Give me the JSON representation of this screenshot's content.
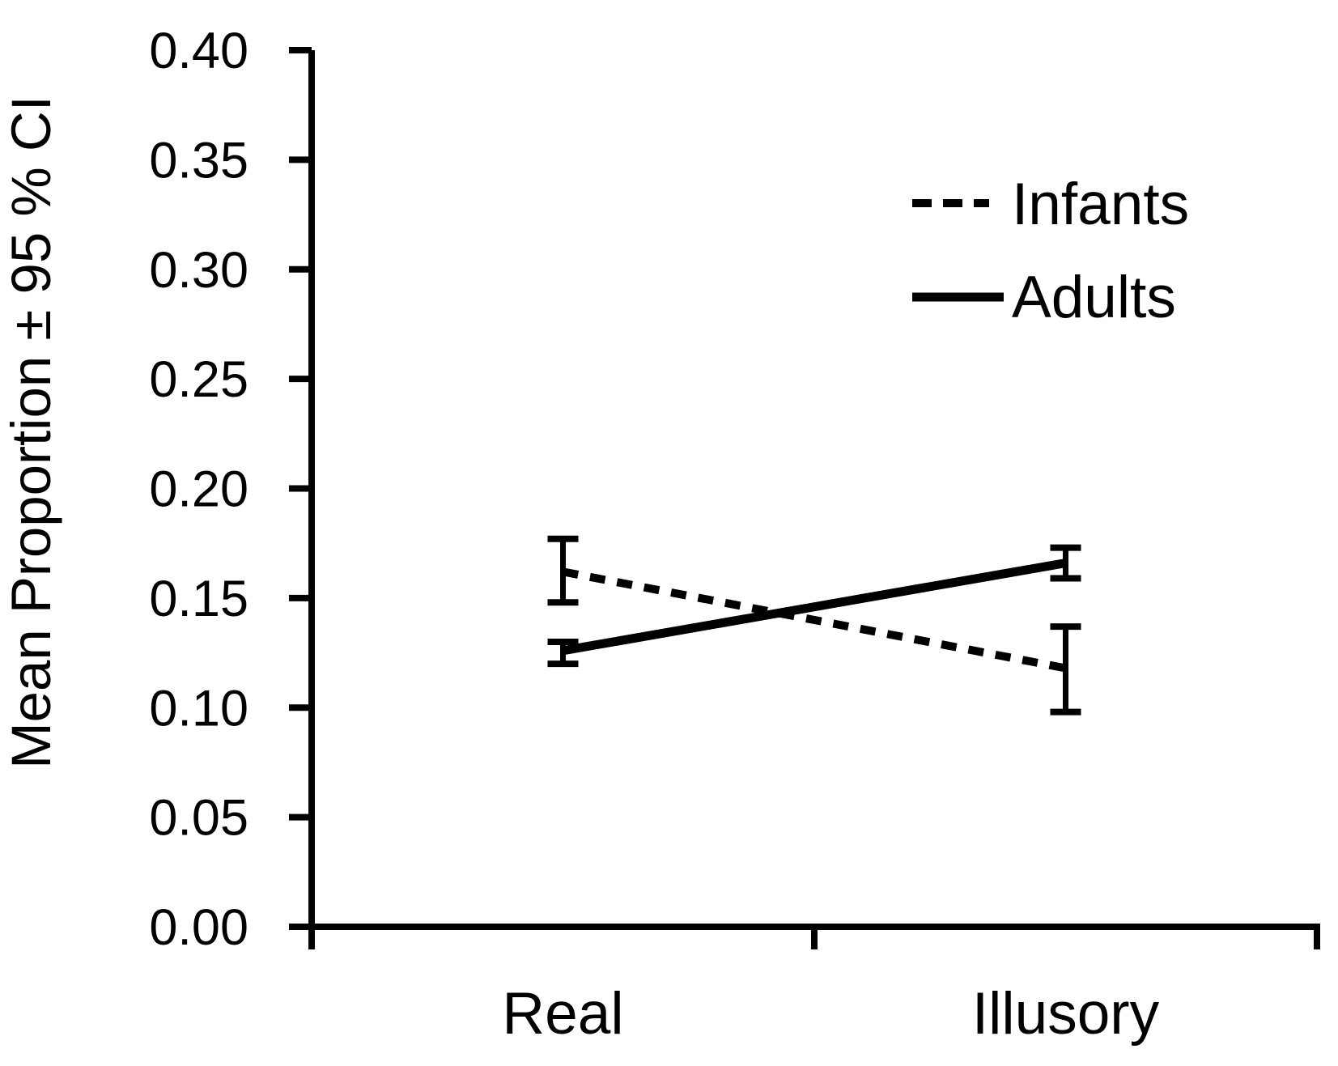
{
  "chart_data": {
    "type": "line",
    "title": "",
    "ylabel": "Mean Proportion ± 95 % CI",
    "xlabel": "",
    "categories": [
      "Real",
      "Illusory"
    ],
    "ylim": [
      0.0,
      0.4
    ],
    "y_tick_step": 0.05,
    "y_tick_labels": [
      "0.00",
      "0.05",
      "0.10",
      "0.15",
      "0.20",
      "0.25",
      "0.30",
      "0.35",
      "0.40"
    ],
    "grid": false,
    "legend_position": "top-right-inside",
    "line_color": "#000000",
    "background_color": "#ffffff",
    "error_bar_type": "95% CI",
    "series": [
      {
        "name": "Infants",
        "line_style": "dashed",
        "values": [
          0.162,
          0.118
        ],
        "ci_low": [
          0.148,
          0.098
        ],
        "ci_high": [
          0.177,
          0.137
        ]
      },
      {
        "name": "Adults",
        "line_style": "solid",
        "values": [
          0.126,
          0.166
        ],
        "ci_low": [
          0.12,
          0.159
        ],
        "ci_high": [
          0.13,
          0.173
        ]
      }
    ]
  }
}
